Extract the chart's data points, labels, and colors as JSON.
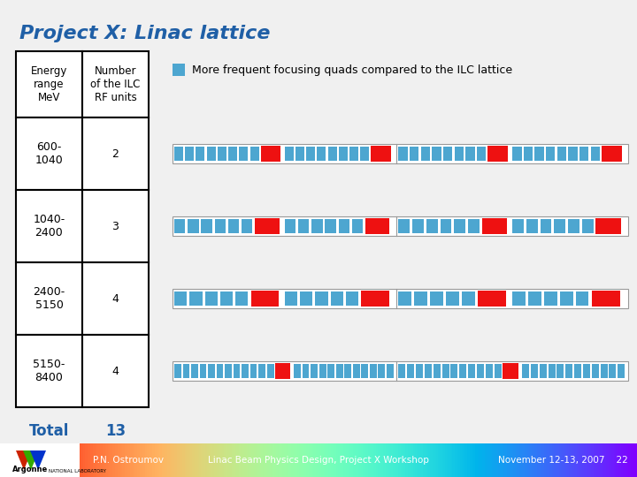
{
  "title": "Project X: Linac lattice",
  "title_color": "#1F5FA6",
  "title_fontsize": 16,
  "bg_color": "#F0F0F0",
  "table_headers": [
    "Energy\nrange\nMeV",
    "Number\nof the ILC\nRF units"
  ],
  "table_rows": [
    [
      "600-\n1040",
      "2"
    ],
    [
      "1040-\n2400",
      "3"
    ],
    [
      "2400-\n5150",
      "4"
    ],
    [
      "5150-\n8400",
      "4"
    ]
  ],
  "total_label": "Total",
  "total_value": "13",
  "total_color": "#1F5FA6",
  "legend_text": "More frequent focusing quads compared to the ILC lattice",
  "blue_color": "#4DA6D0",
  "red_color": "#EE1111",
  "footer_text_left": "P.N. Ostroumov",
  "footer_text_center": "Linac Beam Physics Design, Project X Workshop",
  "footer_text_right": "November 12-13, 2007    22",
  "lattice_rows": [
    {
      "n_blue_per_period": 8,
      "n_periods_half": 2,
      "n_red_per_half": 2
    },
    {
      "n_blue_per_period": 6,
      "n_periods_half": 2,
      "n_red_per_half": 2
    },
    {
      "n_blue_per_period": 5,
      "n_periods_half": 2,
      "n_red_per_half": 2
    },
    {
      "n_blue_per_period": 12,
      "n_periods_half": 2,
      "n_red_per_half": 1
    }
  ]
}
